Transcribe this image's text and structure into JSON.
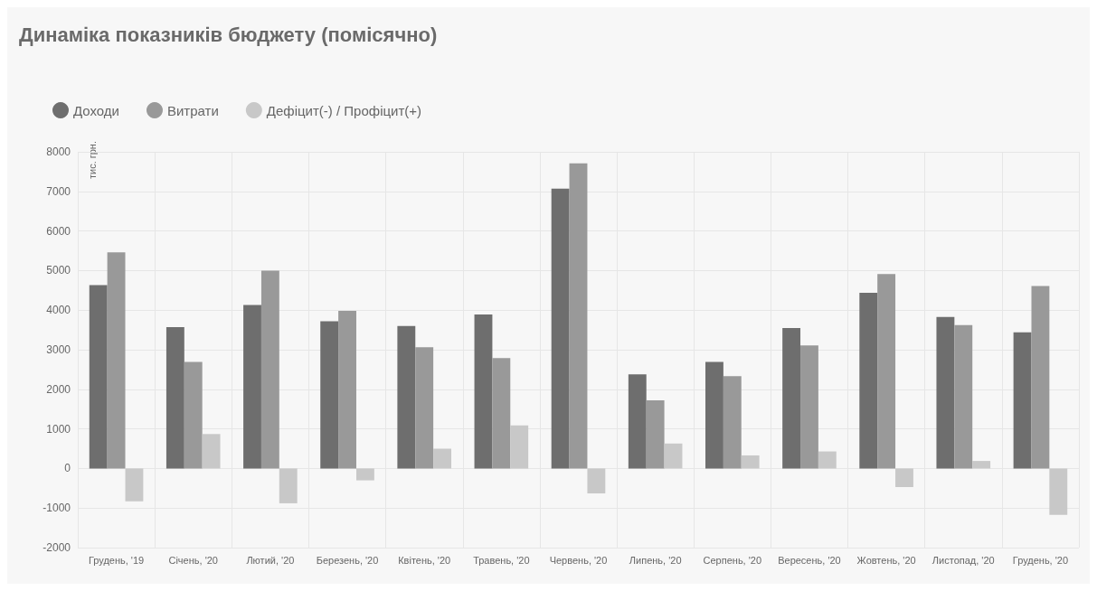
{
  "chart_data": {
    "type": "bar",
    "title": "Динаміка показників бюджету (помісячно)",
    "ylabel": "тис. грн.",
    "categories": [
      "Грудень, '19",
      "Січень, '20",
      "Лютий, '20",
      "Березень, '20",
      "Квітень, '20",
      "Травень, '20",
      "Червень, '20",
      "Липень, '20",
      "Серпень, '20",
      "Вересень, '20",
      "Жовтень, '20",
      "Листопад, '20",
      "Грудень, '20"
    ],
    "series": [
      {
        "name": "Доходи",
        "color": "#6e6e6e",
        "values": [
          4630,
          3570,
          4130,
          3720,
          3600,
          3890,
          7070,
          2380,
          2690,
          3550,
          4440,
          3830,
          3440
        ]
      },
      {
        "name": "Витрати",
        "color": "#999999",
        "values": [
          5460,
          2690,
          5000,
          3980,
          3060,
          2790,
          7710,
          1720,
          2330,
          3110,
          4910,
          3620,
          4610
        ]
      },
      {
        "name": "Дефіцит(-) / Профіцит(+)",
        "color": "#c8c8c8",
        "values": [
          -830,
          870,
          -880,
          -300,
          500,
          1090,
          -630,
          630,
          330,
          430,
          -470,
          190,
          -1170
        ]
      }
    ],
    "ylim": [
      -2000,
      8000
    ],
    "yticks": [
      -2000,
      -1000,
      0,
      1000,
      2000,
      3000,
      4000,
      5000,
      6000,
      7000,
      8000
    ],
    "grid": true,
    "legend": "top left"
  }
}
